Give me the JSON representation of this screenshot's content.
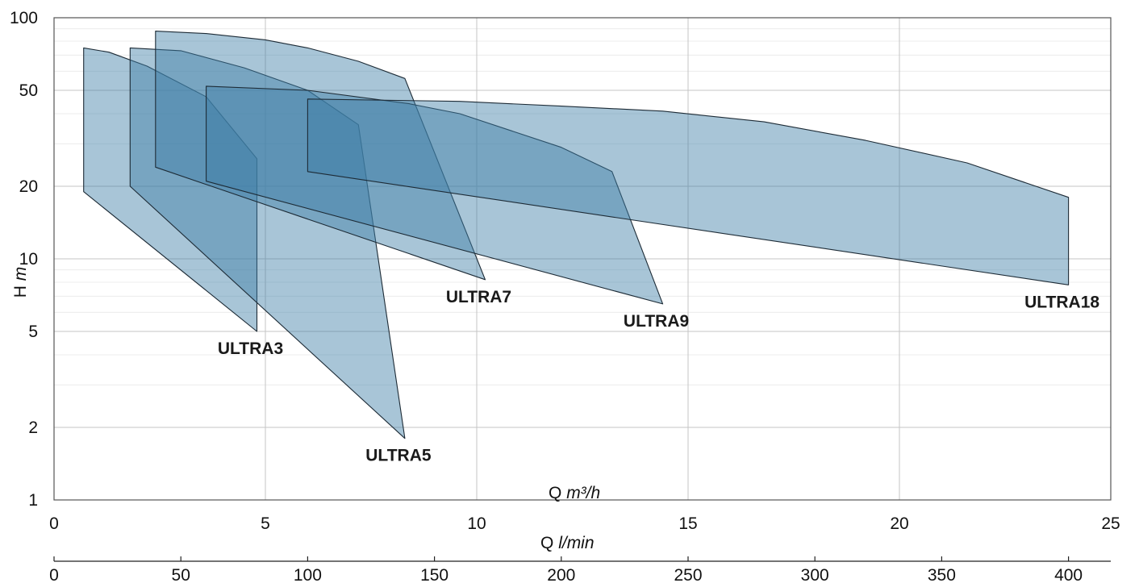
{
  "chart_data": {
    "type": "area",
    "xaxis_primary": {
      "label": "Q",
      "unit": "m³/h",
      "ticks": [
        0,
        5,
        10,
        15,
        20,
        25
      ],
      "range": [
        0,
        25
      ]
    },
    "xaxis_secondary": {
      "label": "Q",
      "unit": "l/min",
      "ticks": [
        0,
        50,
        100,
        150,
        200,
        250,
        300,
        350,
        400
      ]
    },
    "yaxis": {
      "label": "H",
      "unit": "m",
      "scale": "log",
      "ticks": [
        1,
        2,
        5,
        10,
        20,
        50,
        100
      ],
      "range": [
        1,
        100
      ]
    },
    "grid": true,
    "fill_color": "#3f7ea6",
    "series": [
      {
        "name": "ULTRA3",
        "outline": [
          [
            0.7,
            75
          ],
          [
            1.3,
            72
          ],
          [
            2.2,
            63
          ],
          [
            3.6,
            47
          ],
          [
            4.8,
            26
          ],
          [
            4.8,
            5
          ],
          [
            0.7,
            19
          ]
        ]
      },
      {
        "name": "ULTRA5",
        "outline": [
          [
            1.8,
            75
          ],
          [
            3.0,
            73
          ],
          [
            4.5,
            62
          ],
          [
            6.0,
            50
          ],
          [
            7.2,
            36
          ],
          [
            8.3,
            1.8
          ],
          [
            1.8,
            20
          ]
        ]
      },
      {
        "name": "ULTRA7",
        "outline": [
          [
            2.4,
            88
          ],
          [
            3.6,
            86
          ],
          [
            5.0,
            81
          ],
          [
            6.0,
            75
          ],
          [
            7.2,
            66
          ],
          [
            8.3,
            56
          ],
          [
            10.2,
            8.2
          ],
          [
            2.4,
            24
          ]
        ]
      },
      {
        "name": "ULTRA9",
        "outline": [
          [
            3.6,
            52
          ],
          [
            6.0,
            50
          ],
          [
            8.4,
            44
          ],
          [
            9.6,
            40
          ],
          [
            12.0,
            29
          ],
          [
            13.2,
            23
          ],
          [
            14.4,
            6.5
          ],
          [
            3.6,
            21
          ]
        ]
      },
      {
        "name": "ULTRA18",
        "outline": [
          [
            6.0,
            46
          ],
          [
            9.6,
            45
          ],
          [
            12.0,
            43
          ],
          [
            14.4,
            41
          ],
          [
            16.8,
            37
          ],
          [
            19.2,
            31
          ],
          [
            21.6,
            25
          ],
          [
            24.0,
            18
          ],
          [
            24.0,
            7.8
          ],
          [
            6.0,
            23
          ]
        ]
      }
    ]
  }
}
